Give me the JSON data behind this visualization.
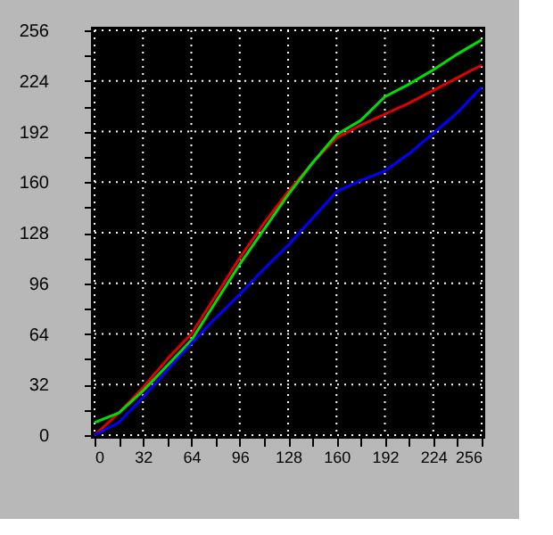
{
  "chart_data": {
    "type": "line",
    "x": [
      0,
      16,
      32,
      48,
      64,
      80,
      96,
      112,
      128,
      144,
      160,
      176,
      192,
      208,
      224,
      240,
      256
    ],
    "series": [
      {
        "color": "#e00000",
        "values": [
          0,
          14,
          30,
          48,
          64,
          88,
          112,
          134,
          154,
          172,
          188,
          196,
          203,
          210,
          218,
          226,
          234
        ]
      },
      {
        "color": "#00e000",
        "values": [
          8,
          14,
          28,
          44,
          60,
          84,
          108,
          130,
          152,
          172,
          190,
          199,
          214,
          222,
          231,
          241,
          250
        ]
      },
      {
        "color": "#0000ff",
        "values": [
          0,
          8,
          24,
          41,
          58,
          74,
          89,
          105,
          120,
          137,
          154,
          161,
          167,
          178,
          191,
          204,
          220
        ]
      }
    ],
    "xlim": [
      0,
      256
    ],
    "ylim": [
      0,
      256
    ],
    "xticks": [
      0,
      {
        "value": 16,
        "label": null
      },
      32,
      {
        "value": 48,
        "label": null
      },
      64,
      {
        "value": 80,
        "label": null
      },
      96,
      {
        "value": 112,
        "label": null
      },
      128,
      {
        "value": 144,
        "label": null
      },
      160,
      {
        "value": 176,
        "label": null
      },
      192,
      {
        "value": 208,
        "label": null
      },
      224,
      {
        "value": 240,
        "label": null
      },
      256
    ],
    "yticks": [
      0,
      {
        "value": 16,
        "label": null
      },
      32,
      {
        "value": 48,
        "label": null
      },
      64,
      {
        "value": 80,
        "label": null
      },
      96,
      {
        "value": 112,
        "label": null
      },
      128,
      {
        "value": 144,
        "label": null
      },
      160,
      {
        "value": 176,
        "label": null
      },
      192,
      {
        "value": 208,
        "label": null
      },
      224,
      {
        "value": 240,
        "label": null
      },
      256
    ],
    "grid": true,
    "legend": false,
    "marker": "none",
    "line_style": "solid"
  }
}
